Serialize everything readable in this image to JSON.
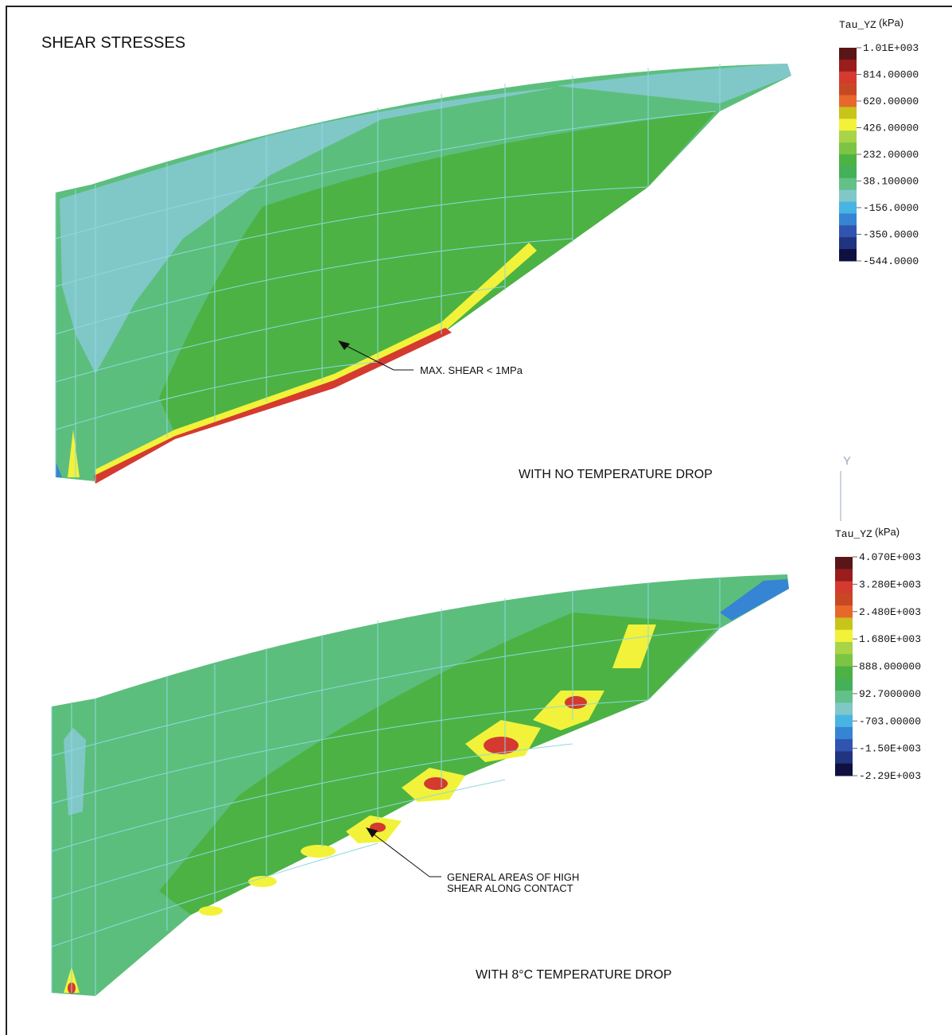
{
  "title": "SHEAR STRESSES",
  "axis_label": "Y",
  "panels": [
    {
      "caption": "WITH NO TEMPERATURE DROP",
      "annotation": "MAX. SHEAR < 1MPa",
      "legend": {
        "variable": "Tau_YZ",
        "unit": "(kPa)",
        "labels": [
          "1.01E+003",
          "814.00000",
          "620.00000",
          "426.00000",
          "232.00000",
          "38.100000",
          "-156.0000",
          "-350.0000",
          "-544.0000"
        ],
        "colors": [
          "#5a1616",
          "#9a1c1c",
          "#d43a30",
          "#c84824",
          "#e8682c",
          "#c8c41c",
          "#f2f23a",
          "#a8d448",
          "#7cc444",
          "#4cb244",
          "#44b058",
          "#62c088",
          "#80c8c8",
          "#48b4e4",
          "#3684d4",
          "#3054b0",
          "#203480",
          "#101040"
        ]
      }
    },
    {
      "caption": "WITH 8°C TEMPERATURE DROP",
      "annotation": [
        "GENERAL AREAS OF HIGH",
        "SHEAR ALONG CONTACT"
      ],
      "legend": {
        "variable": "Tau_YZ",
        "unit": "(kPa)",
        "labels": [
          "4.070E+003",
          "3.280E+003",
          "2.480E+003",
          "1.680E+003",
          "888.000000",
          "92.7000000",
          "-703.00000",
          "-1.50E+003",
          "-2.29E+003"
        ],
        "colors": [
          "#5a1616",
          "#9a1c1c",
          "#d43a30",
          "#c84824",
          "#e8682c",
          "#c8c41c",
          "#f2f23a",
          "#a8d448",
          "#7cc444",
          "#4cb244",
          "#44b058",
          "#62c088",
          "#80c8c8",
          "#48b4e4",
          "#3684d4",
          "#3054b0",
          "#203480",
          "#101040"
        ]
      }
    }
  ]
}
